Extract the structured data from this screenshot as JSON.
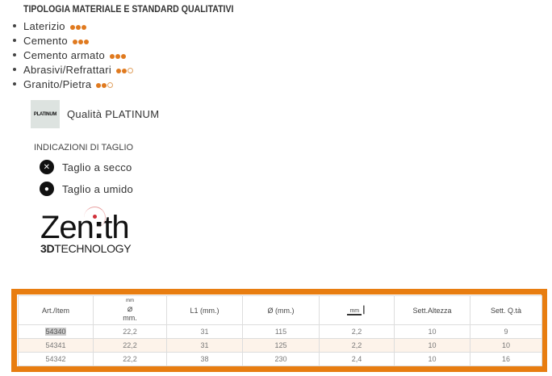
{
  "title": "TIPOLOGIA MATERIALE E STANDARD QUALITATIVI",
  "materials": [
    {
      "label": "Laterizio",
      "rating": 3
    },
    {
      "label": "Cemento",
      "rating": 3
    },
    {
      "label": "Cemento armato",
      "rating": 3
    },
    {
      "label": "Abrasivi/Refrattari",
      "rating": 2
    },
    {
      "label": "Granito/Pietra",
      "rating": 2
    }
  ],
  "quality": {
    "badge": "PLATINUM",
    "label": "Qualità PLATINUM"
  },
  "cutting": {
    "title": "INDICAZIONI DI TAGLIO",
    "dry": "Taglio a secco",
    "wet": "Taglio a umido"
  },
  "logo": {
    "name": "Zenith",
    "sub_bold": "3D",
    "sub": "TECHNOLOGY"
  },
  "table": {
    "headers": [
      "Art./Item",
      "mm.",
      "L1 (mm.)",
      "Ø (mm.)",
      "",
      "Sett.Altezza",
      "Sett. Q.tà"
    ],
    "header_icon_small": "mm",
    "rows": [
      [
        "54340",
        "22,2",
        "31",
        "115",
        "2,2",
        "10",
        "9"
      ],
      [
        "54341",
        "22,2",
        "31",
        "125",
        "2,2",
        "10",
        "10"
      ],
      [
        "54342",
        "22,2",
        "38",
        "230",
        "2,4",
        "10",
        "16"
      ]
    ]
  },
  "colors": {
    "accent": "#e87d10",
    "dot": "#e07a1f"
  }
}
